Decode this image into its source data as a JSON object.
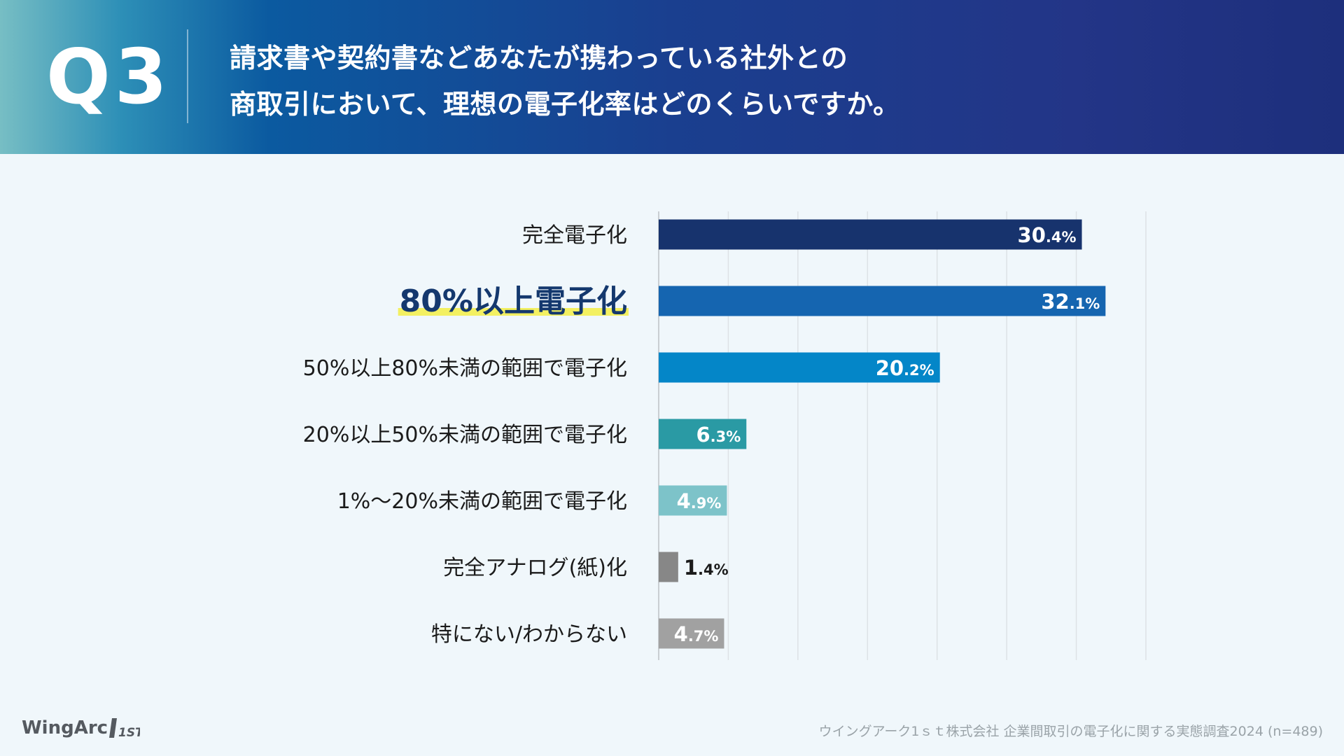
{
  "header": {
    "question_label": "Q3",
    "title_line1": "請求書や契約書などあなたが携わっている社外との",
    "title_line2": "商取引において、理想の電子化率はどのくらいですか。"
  },
  "colors": {
    "header_gradient": [
      "#77bec4",
      "#0b5aa0",
      "#1d2f7c"
    ],
    "highlight_underline": "#f3f061",
    "highlight_text": "#14386e",
    "grid": "#dde2e6"
  },
  "chart_data": {
    "type": "bar",
    "orientation": "horizontal",
    "title": "理想の電子化率",
    "xlim": [
      0,
      35
    ],
    "grid": true,
    "value_unit": "%",
    "categories": [
      "完全電子化",
      "80%以上電子化",
      "50%以上80%未満の範囲で電子化",
      "20%以上50%未満の範囲で電子化",
      "1%〜20%未満の範囲で電子化",
      "完全アナログ(紙)化",
      "特にない/わからない"
    ],
    "values": [
      30.4,
      32.1,
      20.2,
      6.3,
      4.9,
      1.4,
      4.7
    ],
    "bar_colors": [
      "#17336d",
      "#1565b0",
      "#0486c8",
      "#2a9aa4",
      "#7dc3c9",
      "#878787",
      "#a1a1a1"
    ],
    "highlighted_category": "80%以上電子化"
  },
  "footer": {
    "logo_text": "WingArc",
    "logo_suffix": "1ST",
    "source": "ウイングアーク1ｓｔ株式会社 企業間取引の電子化に関する実態調査2024 (n=489)"
  }
}
